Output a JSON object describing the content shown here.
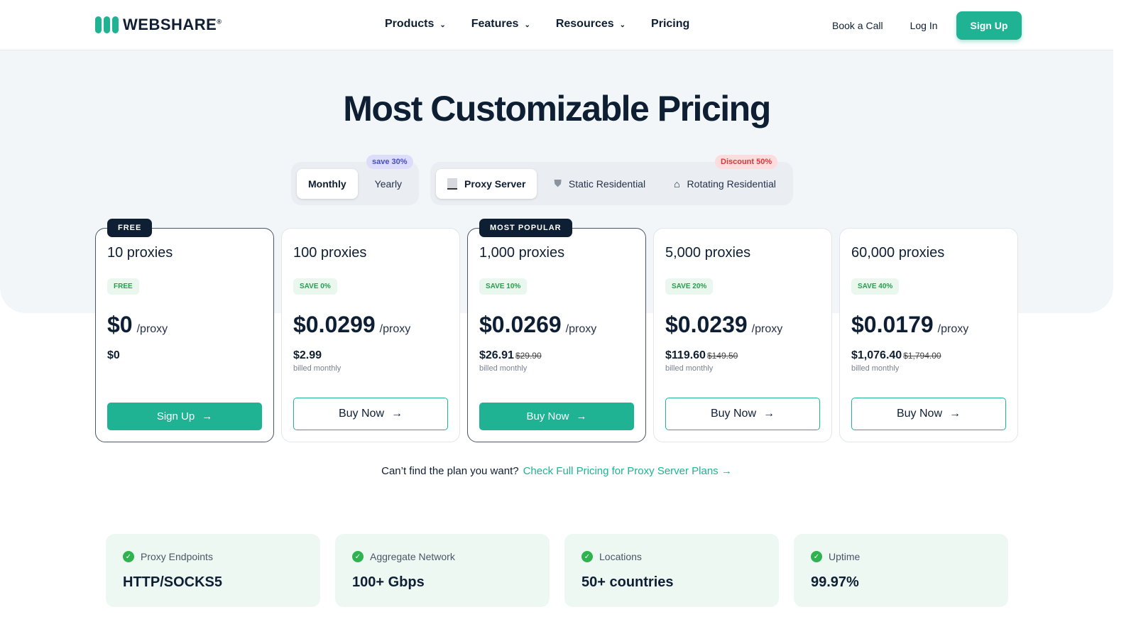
{
  "nav": {
    "brand": "WEBSHARE",
    "brand_mark": "®",
    "menu": [
      {
        "label": "Products"
      },
      {
        "label": "Features"
      },
      {
        "label": "Resources"
      },
      {
        "label": "Pricing"
      }
    ],
    "book_call": "Book a Call",
    "login": "Log In",
    "signup": "Sign Up"
  },
  "hero": {
    "title": "Most Customizable Pricing"
  },
  "billing": {
    "monthly": "Monthly",
    "yearly": "Yearly",
    "yearly_badge": "save 30%"
  },
  "products": {
    "items": [
      {
        "label": "Proxy Server",
        "icon": "server-icon"
      },
      {
        "label": "Static Residential",
        "icon": "shield-icon"
      },
      {
        "label": "Rotating Residential",
        "icon": "house-icon"
      }
    ],
    "rotating_badge": "Discount 50%"
  },
  "plans": [
    {
      "tag": "FREE",
      "qty": "10 proxies",
      "save": "FREE",
      "price": "$0",
      "unit": "/proxy",
      "total": "$0",
      "old": "",
      "billed": "",
      "cta": "Sign Up",
      "highlight": true
    },
    {
      "tag": "",
      "qty": "100 proxies",
      "save": "SAVE 0%",
      "price": "$0.0299",
      "unit": "/proxy",
      "total": "$2.99",
      "old": "",
      "billed": "billed monthly",
      "cta": "Buy Now",
      "highlight": false
    },
    {
      "tag": "MOST POPULAR",
      "qty": "1,000 proxies",
      "save": "SAVE 10%",
      "price": "$0.0269",
      "unit": "/proxy",
      "total": "$26.91",
      "old": "$29.90",
      "billed": "billed monthly",
      "cta": "Buy Now",
      "highlight": true
    },
    {
      "tag": "",
      "qty": "5,000 proxies",
      "save": "SAVE 20%",
      "price": "$0.0239",
      "unit": "/proxy",
      "total": "$119.60",
      "old": "$149.50",
      "billed": "billed monthly",
      "cta": "Buy Now",
      "highlight": false
    },
    {
      "tag": "",
      "qty": "60,000 proxies",
      "save": "SAVE 40%",
      "price": "$0.0179",
      "unit": "/proxy",
      "total": "$1,076.40",
      "old": "$1,794.00",
      "billed": "billed monthly",
      "cta": "Buy Now",
      "highlight": false
    }
  ],
  "more": {
    "text": "Can’t find the plan you want?",
    "link": "Check Full Pricing for Proxy Server Plans"
  },
  "features": [
    {
      "label": "Proxy Endpoints",
      "value": "HTTP/SOCKS5"
    },
    {
      "label": "Aggregate Network",
      "value": "100+ Gbps"
    },
    {
      "label": "Locations",
      "value": "50+ countries"
    },
    {
      "label": "Uptime",
      "value": "99.97%"
    }
  ],
  "colors": {
    "accent": "#1fb394",
    "dark": "#0f1f33"
  }
}
